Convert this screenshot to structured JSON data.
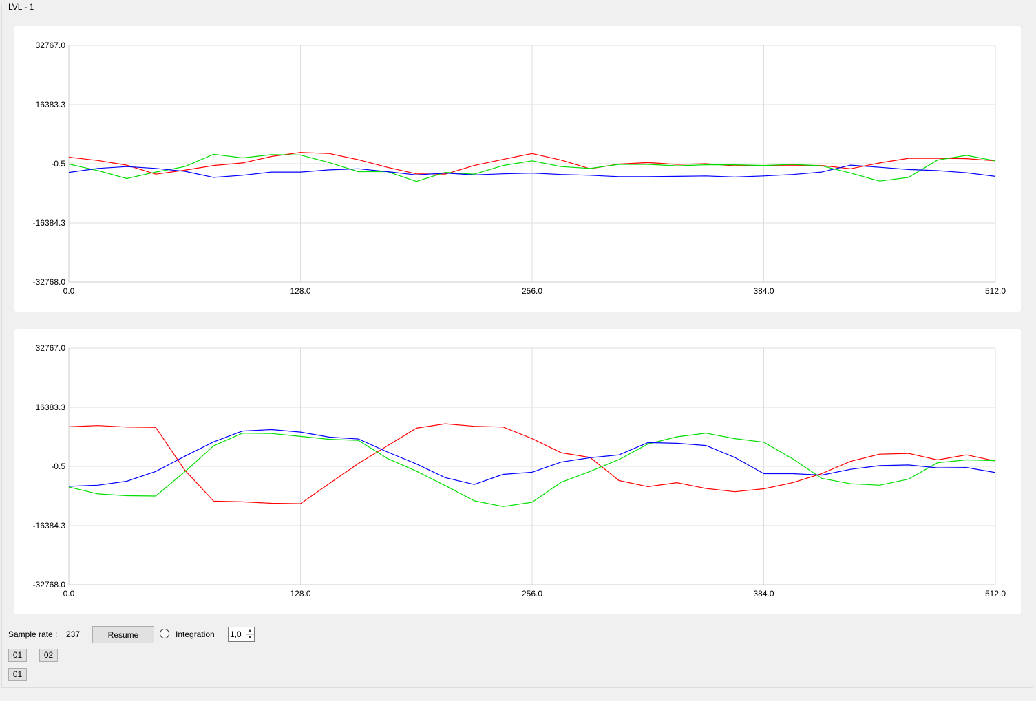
{
  "window": {
    "group_title": "LVL - 1"
  },
  "controls": {
    "sample_rate_label": "Sample rate :",
    "sample_rate_value": "237",
    "resume_label": "Resume",
    "integration_label": "Integration",
    "integration_checked": false,
    "integration_value": "1,0"
  },
  "buttons": [
    "01",
    "02",
    "01"
  ],
  "colors": {
    "series_1": "#ff0000",
    "series_2": "#00dd00",
    "series_3": "#0000ff",
    "grid": "#dddddd",
    "axis": "#cccccc"
  },
  "chart_data": [
    {
      "type": "line",
      "title": "",
      "xlabel": "",
      "ylabel": "",
      "xlim": [
        0,
        512
      ],
      "ylim": [
        -32768,
        32767
      ],
      "x_ticks": [
        "0.0",
        "128.0",
        "256.0",
        "384.0",
        "512.0"
      ],
      "y_ticks": [
        "32767.0",
        "16383.3",
        "-0.5",
        "-16384.3",
        "-32768.0"
      ],
      "grid": true,
      "series": [
        {
          "color": "#ff0000",
          "points": [
            [
              0,
              1800
            ],
            [
              16,
              900
            ],
            [
              32,
              -400
            ],
            [
              48,
              -2900
            ],
            [
              64,
              -1800
            ],
            [
              80,
              -500
            ],
            [
              96,
              200
            ],
            [
              112,
              2000
            ],
            [
              128,
              3100
            ],
            [
              144,
              2800
            ],
            [
              160,
              1100
            ],
            [
              176,
              -1000
            ],
            [
              192,
              -2800
            ],
            [
              208,
              -2900
            ],
            [
              224,
              -500
            ],
            [
              240,
              1200
            ],
            [
              256,
              2800
            ],
            [
              272,
              1000
            ],
            [
              288,
              -1400
            ],
            [
              304,
              -100
            ],
            [
              320,
              300
            ],
            [
              336,
              -200
            ],
            [
              352,
              0
            ],
            [
              368,
              -600
            ],
            [
              384,
              -500
            ],
            [
              400,
              -400
            ],
            [
              416,
              -500
            ],
            [
              432,
              -1400
            ],
            [
              448,
              200
            ],
            [
              464,
              1500
            ],
            [
              480,
              1500
            ],
            [
              496,
              1400
            ],
            [
              512,
              800
            ]
          ]
        },
        {
          "color": "#00dd00",
          "points": [
            [
              0,
              -100
            ],
            [
              16,
              -1900
            ],
            [
              32,
              -4100
            ],
            [
              48,
              -2300
            ],
            [
              64,
              -800
            ],
            [
              80,
              2600
            ],
            [
              96,
              1600
            ],
            [
              112,
              2500
            ],
            [
              128,
              2400
            ],
            [
              144,
              300
            ],
            [
              160,
              -2200
            ],
            [
              176,
              -2200
            ],
            [
              192,
              -4900
            ],
            [
              208,
              -2400
            ],
            [
              224,
              -2900
            ],
            [
              240,
              -500
            ],
            [
              256,
              800
            ],
            [
              272,
              -800
            ],
            [
              288,
              -1300
            ],
            [
              304,
              -200
            ],
            [
              320,
              -200
            ],
            [
              336,
              -600
            ],
            [
              352,
              -300
            ],
            [
              368,
              -300
            ],
            [
              384,
              -500
            ],
            [
              400,
              -200
            ],
            [
              416,
              -600
            ],
            [
              432,
              -2600
            ],
            [
              448,
              -4800
            ],
            [
              464,
              -3800
            ],
            [
              480,
              1000
            ],
            [
              496,
              2300
            ],
            [
              512,
              800
            ]
          ]
        },
        {
          "color": "#0000ff",
          "points": [
            [
              0,
              -2400
            ],
            [
              16,
              -1300
            ],
            [
              32,
              -800
            ],
            [
              48,
              -1300
            ],
            [
              64,
              -2100
            ],
            [
              80,
              -3800
            ],
            [
              96,
              -3200
            ],
            [
              112,
              -2300
            ],
            [
              128,
              -2300
            ],
            [
              144,
              -1700
            ],
            [
              160,
              -1400
            ],
            [
              176,
              -2200
            ],
            [
              192,
              -3100
            ],
            [
              208,
              -2600
            ],
            [
              224,
              -3100
            ],
            [
              240,
              -2800
            ],
            [
              256,
              -2600
            ],
            [
              272,
              -3000
            ],
            [
              288,
              -3200
            ],
            [
              304,
              -3600
            ],
            [
              320,
              -3600
            ],
            [
              336,
              -3500
            ],
            [
              352,
              -3400
            ],
            [
              368,
              -3700
            ],
            [
              384,
              -3400
            ],
            [
              400,
              -3000
            ],
            [
              416,
              -2300
            ],
            [
              432,
              -400
            ],
            [
              448,
              -1000
            ],
            [
              464,
              -1600
            ],
            [
              480,
              -1900
            ],
            [
              496,
              -2500
            ],
            [
              512,
              -3500
            ]
          ]
        }
      ]
    },
    {
      "type": "line",
      "title": "",
      "xlabel": "",
      "ylabel": "",
      "xlim": [
        0,
        512
      ],
      "ylim": [
        -32768,
        32767
      ],
      "x_ticks": [
        "0.0",
        "128.0",
        "256.0",
        "384.0",
        "512.0"
      ],
      "y_ticks": [
        "32767.0",
        "16383.3",
        "-0.5",
        "-16384.3",
        "-32768.0"
      ],
      "grid": true,
      "series": [
        {
          "color": "#ff0000",
          "points": [
            [
              0,
              11000
            ],
            [
              16,
              11300
            ],
            [
              32,
              10900
            ],
            [
              48,
              10800
            ],
            [
              64,
              -1000
            ],
            [
              80,
              -9600
            ],
            [
              96,
              -9800
            ],
            [
              112,
              -10200
            ],
            [
              128,
              -10300
            ],
            [
              144,
              -4700
            ],
            [
              160,
              800
            ],
            [
              176,
              5700
            ],
            [
              192,
              10600
            ],
            [
              208,
              11800
            ],
            [
              224,
              11100
            ],
            [
              240,
              10900
            ],
            [
              256,
              7700
            ],
            [
              272,
              3800
            ],
            [
              288,
              2500
            ],
            [
              304,
              -3900
            ],
            [
              320,
              -5600
            ],
            [
              336,
              -4500
            ],
            [
              352,
              -6100
            ],
            [
              368,
              -7000
            ],
            [
              384,
              -6200
            ],
            [
              400,
              -4500
            ],
            [
              416,
              -2000
            ],
            [
              432,
              1400
            ],
            [
              448,
              3400
            ],
            [
              464,
              3600
            ],
            [
              480,
              1800
            ],
            [
              496,
              3200
            ],
            [
              512,
              1500
            ]
          ]
        },
        {
          "color": "#00dd00",
          "points": [
            [
              0,
              -5700
            ],
            [
              16,
              -7600
            ],
            [
              32,
              -8100
            ],
            [
              48,
              -8200
            ],
            [
              64,
              -1500
            ],
            [
              80,
              5700
            ],
            [
              96,
              9200
            ],
            [
              112,
              9100
            ],
            [
              128,
              8300
            ],
            [
              144,
              7500
            ],
            [
              160,
              7200
            ],
            [
              176,
              2200
            ],
            [
              192,
              -1300
            ],
            [
              208,
              -5300
            ],
            [
              224,
              -9500
            ],
            [
              240,
              -11100
            ],
            [
              256,
              -9900
            ],
            [
              272,
              -4400
            ],
            [
              288,
              -1400
            ],
            [
              304,
              1900
            ],
            [
              320,
              6200
            ],
            [
              336,
              8200
            ],
            [
              352,
              9200
            ],
            [
              368,
              7700
            ],
            [
              384,
              6700
            ],
            [
              400,
              2100
            ],
            [
              416,
              -3300
            ],
            [
              432,
              -4800
            ],
            [
              448,
              -5200
            ],
            [
              464,
              -3500
            ],
            [
              480,
              1000
            ],
            [
              496,
              1800
            ],
            [
              512,
              1600
            ]
          ]
        },
        {
          "color": "#0000ff",
          "points": [
            [
              0,
              -5500
            ],
            [
              16,
              -5200
            ],
            [
              32,
              -4100
            ],
            [
              48,
              -1400
            ],
            [
              64,
              2800
            ],
            [
              80,
              6800
            ],
            [
              96,
              9800
            ],
            [
              112,
              10200
            ],
            [
              128,
              9500
            ],
            [
              144,
              8100
            ],
            [
              160,
              7600
            ],
            [
              176,
              4000
            ],
            [
              192,
              700
            ],
            [
              208,
              -3100
            ],
            [
              224,
              -5000
            ],
            [
              240,
              -2200
            ],
            [
              256,
              -1600
            ],
            [
              272,
              1200
            ],
            [
              288,
              2400
            ],
            [
              304,
              3200
            ],
            [
              320,
              6600
            ],
            [
              336,
              6400
            ],
            [
              352,
              5800
            ],
            [
              368,
              2500
            ],
            [
              384,
              -2000
            ],
            [
              400,
              -2000
            ],
            [
              416,
              -2400
            ],
            [
              432,
              -800
            ],
            [
              448,
              200
            ],
            [
              464,
              400
            ],
            [
              480,
              -400
            ],
            [
              496,
              -300
            ],
            [
              512,
              -1700
            ]
          ]
        }
      ]
    }
  ]
}
